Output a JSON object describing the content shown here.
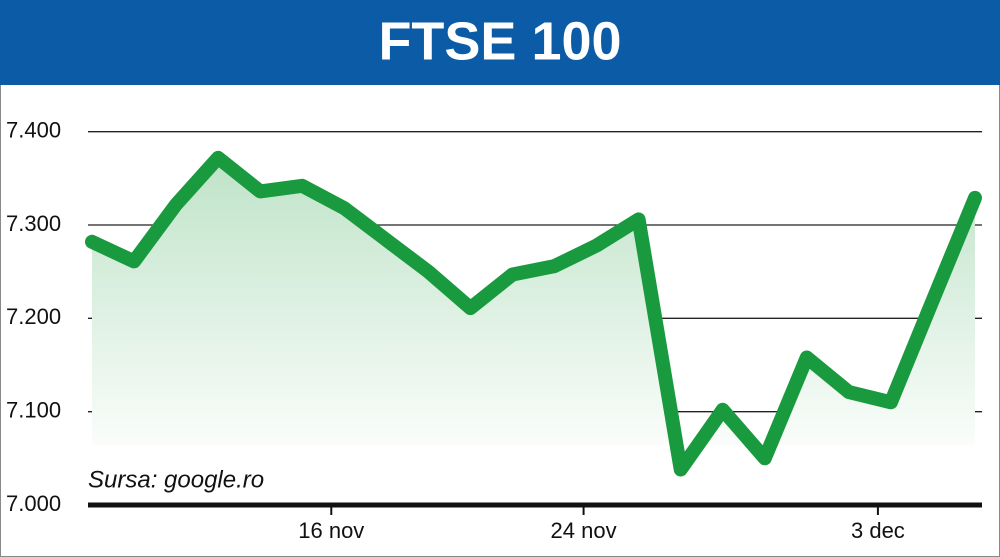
{
  "chart_data": {
    "type": "line",
    "title": "FTSE 100",
    "annotation": "Sursa: google.ro",
    "categories": [
      null,
      null,
      null,
      null,
      null,
      null,
      "16 nov",
      null,
      null,
      null,
      null,
      null,
      "24 nov",
      null,
      null,
      null,
      null,
      null,
      null,
      "3 dec",
      null,
      null
    ],
    "series": [
      {
        "name": "FTSE 100",
        "color": "#1a9a3f",
        "values": [
          7282,
          7261,
          7322,
          7372,
          7336,
          7342,
          7318,
          7284,
          7250,
          7211,
          7247,
          7256,
          7278,
          7306,
          7038,
          7102,
          7050,
          7158,
          7121,
          7110,
          7220,
          7329
        ]
      }
    ],
    "ylim": [
      7000,
      7450
    ],
    "yticks": [
      {
        "value": 7000,
        "label": "7.000"
      },
      {
        "value": 7100,
        "label": "7.100"
      },
      {
        "value": 7200,
        "label": "7.200"
      },
      {
        "value": 7300,
        "label": "7.300"
      },
      {
        "value": 7400,
        "label": "7.400"
      }
    ],
    "grid": true
  }
}
